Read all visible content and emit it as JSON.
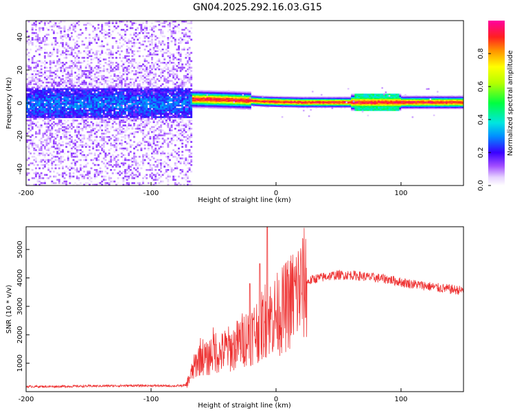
{
  "figure": {
    "title": "GN04.2025.292.16.03.G15"
  },
  "chart_data": [
    {
      "type": "heatmap",
      "title": "GN04.2025.292.16.03.G15",
      "xlabel": "Height of straight line (km)",
      "ylabel": "Frequency (Hz)",
      "xlim": [
        -200,
        150
      ],
      "ylim": [
        -50,
        50
      ],
      "xticks": [
        -200,
        -100,
        0,
        100
      ],
      "xtick_labels": [
        "-200",
        "-100",
        "0",
        "100"
      ],
      "yticks": [
        -40,
        -20,
        0,
        20,
        40
      ],
      "ytick_labels": [
        "-40",
        "-20",
        "0",
        "20",
        "40"
      ],
      "colorbar": {
        "label": "Normalized spectral amplitude",
        "range": [
          0,
          1
        ],
        "ticks": [
          0.0,
          0.2,
          0.4,
          0.6,
          0.8
        ],
        "tick_labels": [
          "0.0",
          "0.2",
          "0.4",
          "0.6",
          "0.8"
        ]
      },
      "regions": [
        {
          "x_range": [
            -200,
            -68
          ],
          "description": "broadband noise",
          "amplitude_band": [
            0.0,
            0.25
          ]
        },
        {
          "x_range": [
            -68,
            150
          ],
          "description": "narrow tone near 0-3 Hz",
          "amplitude_band": [
            0.3,
            1.0
          ]
        }
      ],
      "tone_center_hz": [
        [
          -68,
          2.5
        ],
        [
          -40,
          2.0
        ],
        [
          -20,
          1.5
        ],
        [
          -10,
          1.0
        ],
        [
          0,
          0.8
        ],
        [
          20,
          0.5
        ],
        [
          50,
          0.5
        ],
        [
          80,
          0.5
        ],
        [
          100,
          0.5
        ],
        [
          150,
          0.5
        ]
      ]
    },
    {
      "type": "line",
      "xlabel": "Height of straight line (km)",
      "ylabel": "SNR (10 * v/v)",
      "xlim": [
        -200,
        150
      ],
      "ylim": [
        0,
        5800
      ],
      "xticks": [
        -200,
        -100,
        0,
        100
      ],
      "xtick_labels": [
        "-200",
        "-100",
        "0",
        "100"
      ],
      "yticks": [
        1000,
        2000,
        3000,
        4000,
        5000
      ],
      "ytick_labels": [
        "1000",
        "2000",
        "3000",
        "4000",
        "5000"
      ],
      "color": "#ee3333",
      "series": [
        {
          "name": "SNR",
          "x": [
            -200,
            -180,
            -160,
            -140,
            -120,
            -100,
            -80,
            -72,
            -65,
            -60,
            -55,
            -50,
            -45,
            -40,
            -35,
            -30,
            -25,
            -20,
            -15,
            -10,
            -8,
            -5,
            0,
            5,
            10,
            15,
            20,
            25,
            30,
            35,
            40,
            45,
            50,
            55,
            60,
            65,
            70,
            75,
            80,
            85,
            90,
            95,
            100,
            110,
            120,
            130,
            140,
            150
          ],
          "values": [
            180,
            180,
            190,
            200,
            210,
            210,
            200,
            220,
            900,
            1300,
            1100,
            1500,
            1300,
            1500,
            1500,
            1700,
            1900,
            2000,
            2200,
            2400,
            2600,
            2600,
            2700,
            2850,
            3100,
            3400,
            3650,
            3850,
            3960,
            4000,
            4050,
            4080,
            4100,
            4100,
            4100,
            4080,
            4050,
            4020,
            4000,
            3980,
            3950,
            3900,
            3850,
            3780,
            3720,
            3650,
            3600,
            3550
          ]
        }
      ],
      "spikes": [
        {
          "x": -21,
          "value": 3800
        },
        {
          "x": -13,
          "value": 4500
        },
        {
          "x": -7,
          "value": 5800
        }
      ]
    }
  ]
}
